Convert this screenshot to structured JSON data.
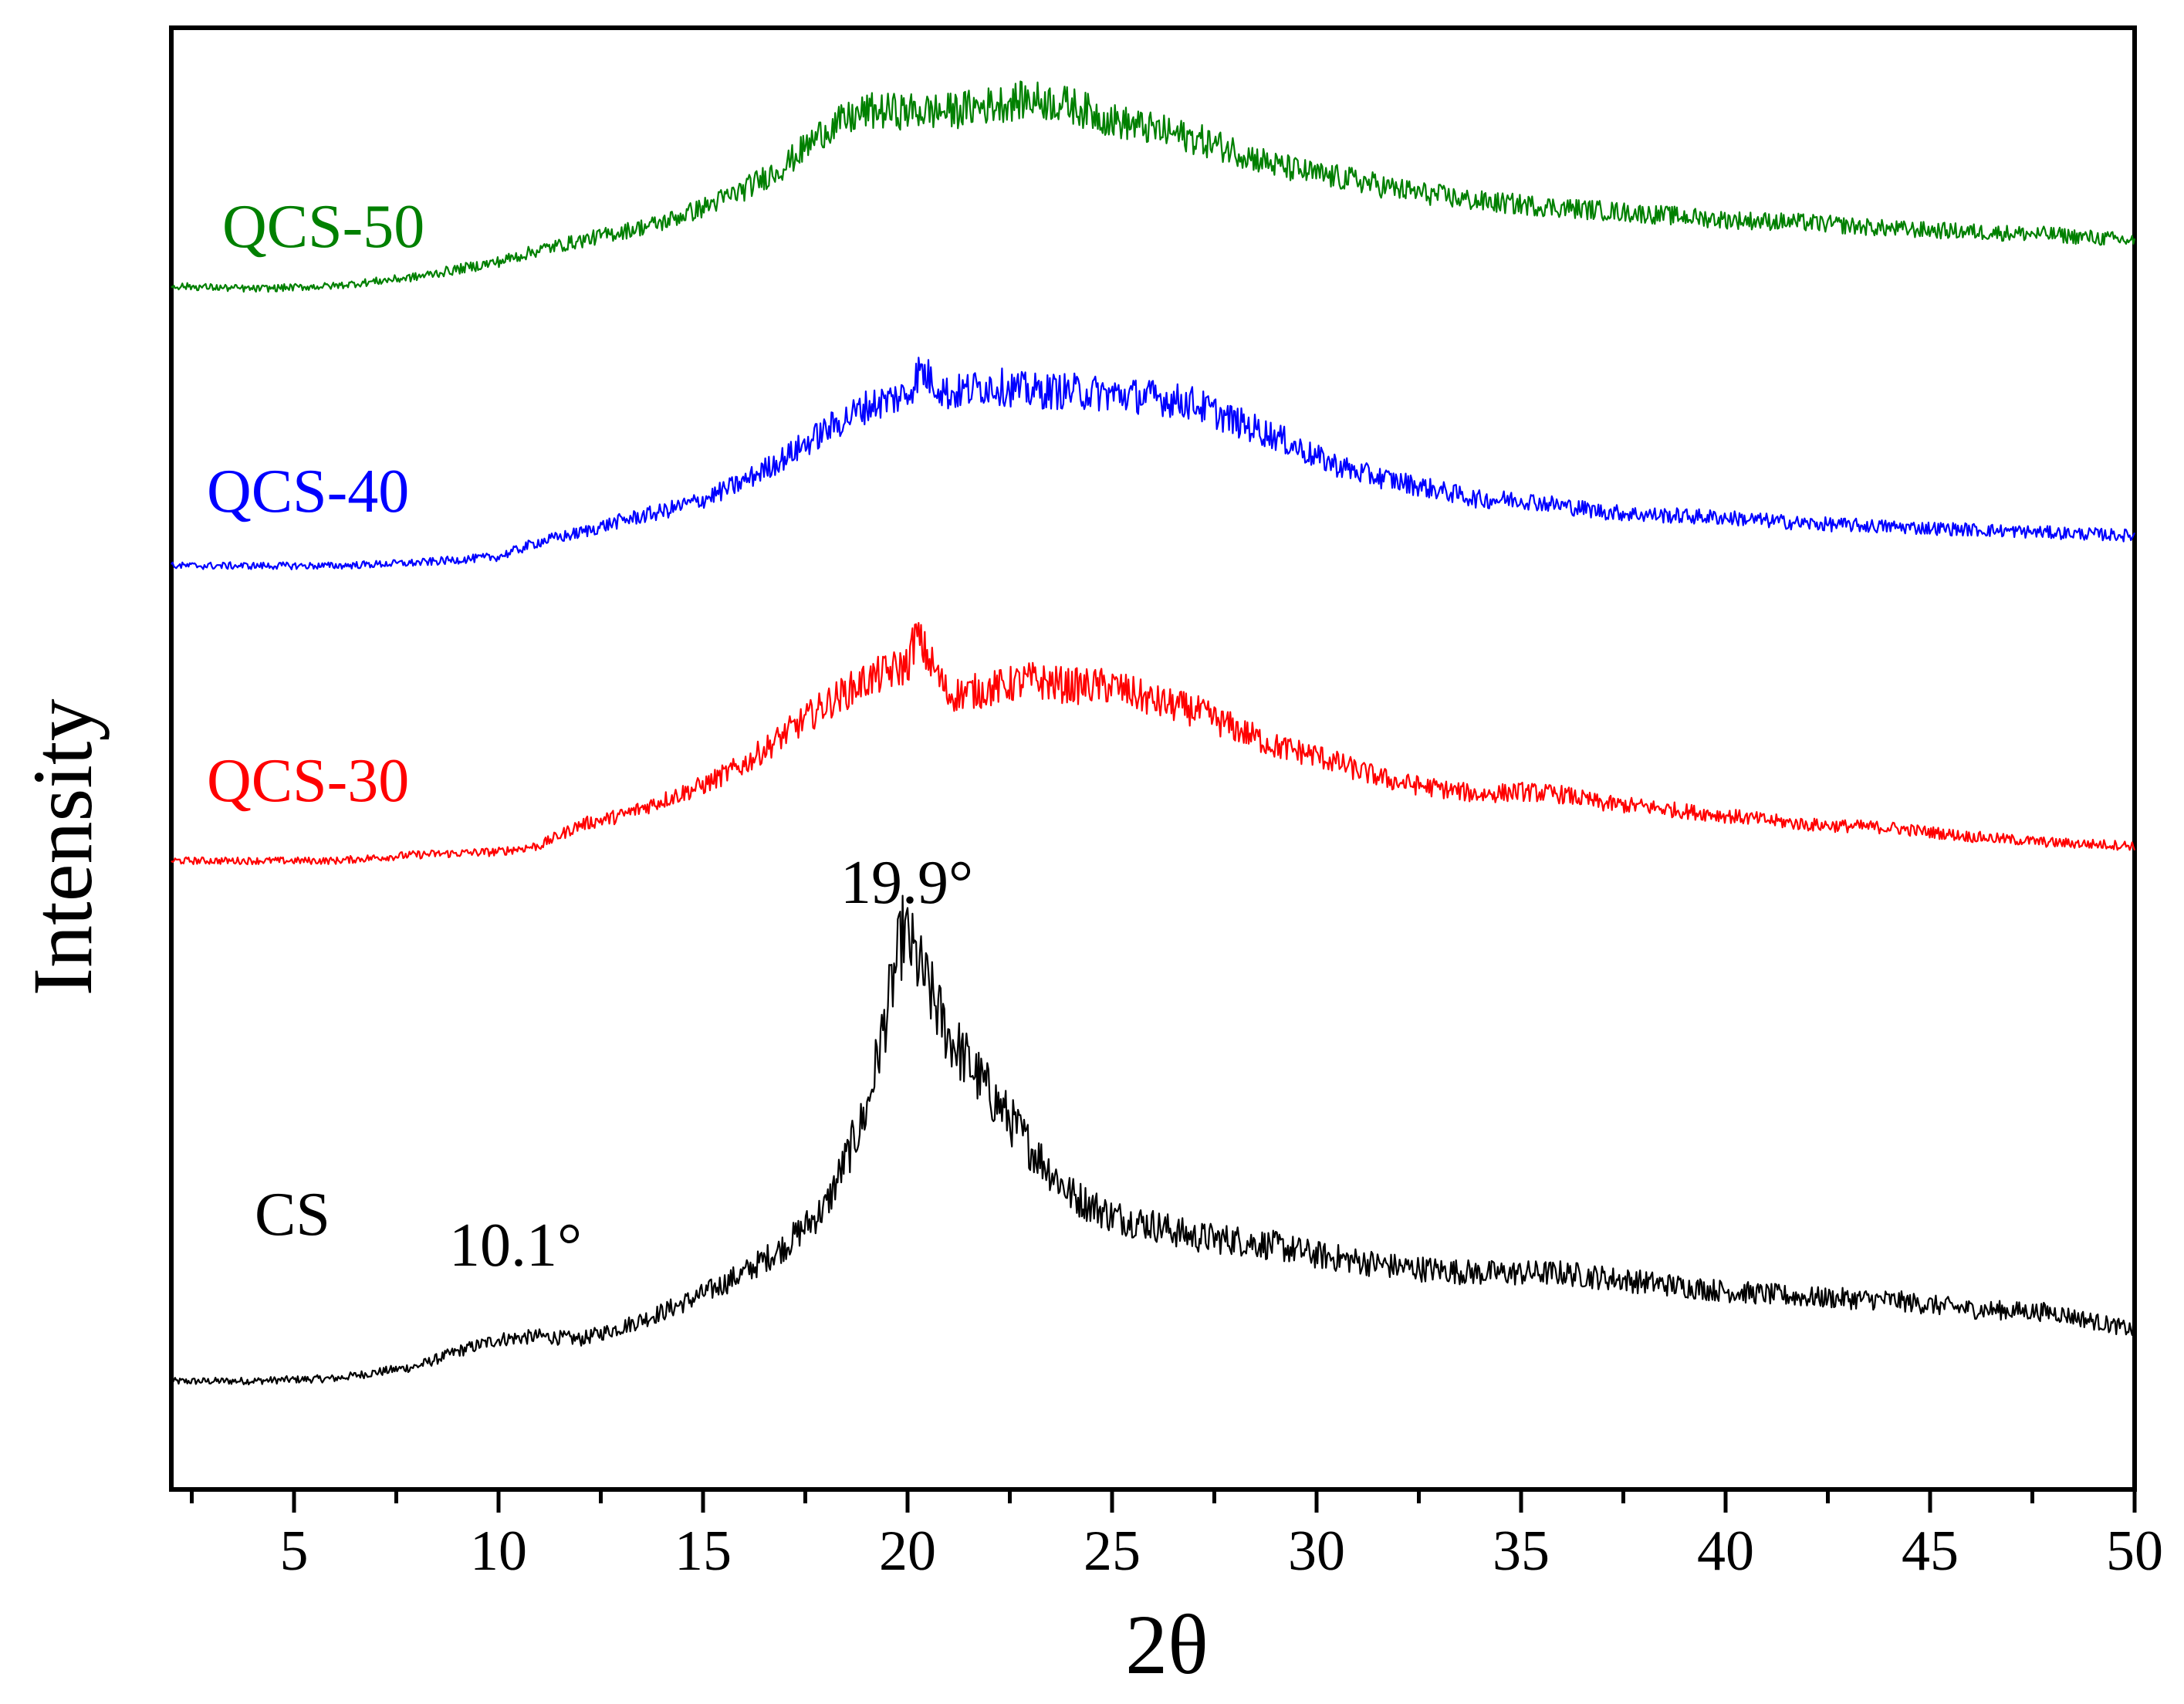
{
  "chart_data": {
    "type": "line",
    "title": "",
    "xlabel": "2θ",
    "ylabel": "Intensity",
    "xlim": [
      2,
      50
    ],
    "x_ticks": [
      "5",
      "10",
      "15",
      "20",
      "25",
      "30",
      "35",
      "40",
      "45",
      "50"
    ],
    "y_ticks_shown": false,
    "grid": false,
    "legend": "none (series labeled inline at left)",
    "series": [
      {
        "name": "CS",
        "label": "CS",
        "color": "#000000",
        "offset": 0,
        "points": [
          [
            2,
            0
          ],
          [
            4,
            0.2
          ],
          [
            6,
            1
          ],
          [
            8,
            5
          ],
          [
            9,
            10
          ],
          [
            10,
            14
          ],
          [
            11,
            15
          ],
          [
            12,
            14
          ],
          [
            13,
            18
          ],
          [
            14,
            23
          ],
          [
            15,
            29
          ],
          [
            16,
            36
          ],
          [
            17,
            45
          ],
          [
            18,
            58
          ],
          [
            19,
            90
          ],
          [
            19.9,
            150
          ],
          [
            21,
            115
          ],
          [
            22,
            96
          ],
          [
            23,
            78
          ],
          [
            24,
            62
          ],
          [
            25,
            55
          ],
          [
            26,
            52
          ],
          [
            27,
            48
          ],
          [
            28,
            47
          ],
          [
            29,
            45
          ],
          [
            30,
            42
          ],
          [
            32,
            38
          ],
          [
            34,
            36
          ],
          [
            36,
            36
          ],
          [
            38,
            33
          ],
          [
            40,
            30
          ],
          [
            42,
            28
          ],
          [
            44,
            27
          ],
          [
            46,
            24
          ],
          [
            48,
            23
          ],
          [
            50,
            17
          ]
        ]
      },
      {
        "name": "QCS-30",
        "label": "QCS-30",
        "color": "#ff0000",
        "offset": 173,
        "points": [
          [
            2,
            0
          ],
          [
            4,
            0
          ],
          [
            6,
            0
          ],
          [
            8,
            2
          ],
          [
            10,
            3
          ],
          [
            11,
            5
          ],
          [
            12,
            12
          ],
          [
            13,
            15
          ],
          [
            14,
            20
          ],
          [
            15,
            25
          ],
          [
            16,
            32
          ],
          [
            17,
            42
          ],
          [
            18,
            52
          ],
          [
            19,
            60
          ],
          [
            20,
            65
          ],
          [
            20.2,
            75
          ],
          [
            21,
            55
          ],
          [
            22,
            57
          ],
          [
            23,
            60
          ],
          [
            24,
            58
          ],
          [
            25,
            58
          ],
          [
            26,
            53
          ],
          [
            27,
            50
          ],
          [
            28,
            44
          ],
          [
            29,
            38
          ],
          [
            30,
            35
          ],
          [
            31,
            30
          ],
          [
            32,
            26
          ],
          [
            33,
            24
          ],
          [
            34,
            22
          ],
          [
            35,
            23
          ],
          [
            36,
            22
          ],
          [
            37,
            19
          ],
          [
            38,
            18
          ],
          [
            40,
            15
          ],
          [
            42,
            12
          ],
          [
            44,
            11
          ],
          [
            46,
            8
          ],
          [
            48,
            6
          ],
          [
            50,
            5
          ]
        ]
      },
      {
        "name": "QCS-40",
        "label": "QCS-40",
        "color": "#0000ff",
        "offset": 271,
        "points": [
          [
            2,
            0
          ],
          [
            4,
            0
          ],
          [
            6,
            0
          ],
          [
            8,
            1
          ],
          [
            10,
            3
          ],
          [
            11,
            8
          ],
          [
            12,
            11
          ],
          [
            13,
            15
          ],
          [
            14,
            18
          ],
          [
            15,
            22
          ],
          [
            16,
            28
          ],
          [
            17,
            36
          ],
          [
            18,
            45
          ],
          [
            19,
            53
          ],
          [
            20,
            57
          ],
          [
            20.3,
            65
          ],
          [
            21,
            57
          ],
          [
            22,
            60
          ],
          [
            23,
            58
          ],
          [
            24,
            58
          ],
          [
            25,
            57
          ],
          [
            26,
            56
          ],
          [
            27,
            54
          ],
          [
            28,
            48
          ],
          [
            29,
            43
          ],
          [
            30,
            36
          ],
          [
            31,
            31
          ],
          [
            32,
            28
          ],
          [
            33,
            25
          ],
          [
            34,
            22
          ],
          [
            35,
            22
          ],
          [
            36,
            20
          ],
          [
            37,
            18
          ],
          [
            38,
            17
          ],
          [
            40,
            16
          ],
          [
            42,
            14
          ],
          [
            44,
            13
          ],
          [
            46,
            12
          ],
          [
            48,
            11
          ],
          [
            50,
            10
          ]
        ]
      },
      {
        "name": "QCS-50",
        "label": "QCS-50",
        "color": "#008000",
        "offset": 364,
        "points": [
          [
            2,
            0
          ],
          [
            4,
            -1
          ],
          [
            6,
            0
          ],
          [
            8,
            3
          ],
          [
            10,
            8
          ],
          [
            11,
            12
          ],
          [
            12,
            15
          ],
          [
            13,
            18
          ],
          [
            14,
            21
          ],
          [
            15,
            26
          ],
          [
            16,
            32
          ],
          [
            17,
            40
          ],
          [
            18,
            52
          ],
          [
            19,
            58
          ],
          [
            20,
            58
          ],
          [
            21,
            58
          ],
          [
            22,
            60
          ],
          [
            23,
            62
          ],
          [
            24,
            60
          ],
          [
            25,
            55
          ],
          [
            26,
            52
          ],
          [
            27,
            49
          ],
          [
            28,
            45
          ],
          [
            29,
            40
          ],
          [
            30,
            37
          ],
          [
            31,
            35
          ],
          [
            32,
            32
          ],
          [
            33,
            30
          ],
          [
            34,
            28
          ],
          [
            35,
            27
          ],
          [
            36,
            26
          ],
          [
            37,
            25
          ],
          [
            38,
            24
          ],
          [
            40,
            22
          ],
          [
            42,
            21
          ],
          [
            44,
            19
          ],
          [
            46,
            18
          ],
          [
            48,
            17
          ],
          [
            50,
            15
          ]
        ]
      }
    ],
    "annotations": [
      {
        "text": "19.9°",
        "x": 19.9,
        "series": "CS"
      },
      {
        "text": "10.1°",
        "x": 10.1,
        "series": "CS"
      }
    ]
  }
}
